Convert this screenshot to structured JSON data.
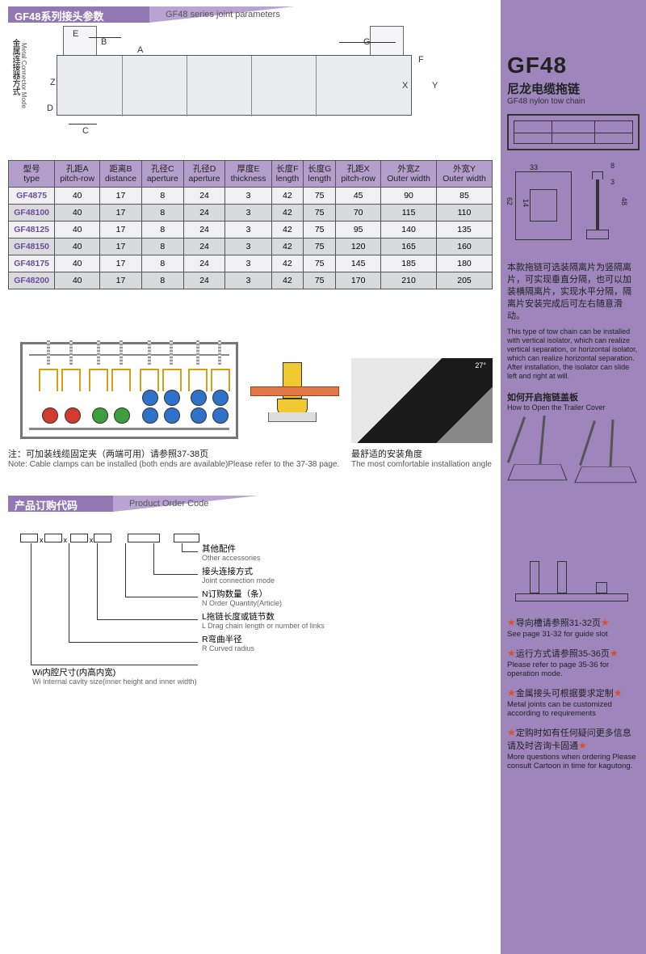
{
  "header1": {
    "cn": "GF48系列接头参数",
    "en": "GF48 series joint parameters"
  },
  "diagram_vertical": {
    "cn": "金属连接器方式",
    "en": "Metal Connector Mode"
  },
  "dim_labels": {
    "A": "A",
    "B": "B",
    "C": "C",
    "D": "D",
    "E": "E",
    "F": "F",
    "G": "G",
    "X": "X",
    "Y": "Y",
    "Z": "Z"
  },
  "table": {
    "headers": [
      {
        "cn": "型号",
        "en": "type"
      },
      {
        "cn": "孔距A",
        "en": "pitch-row"
      },
      {
        "cn": "距离B",
        "en": "distance"
      },
      {
        "cn": "孔径C",
        "en": "aperture"
      },
      {
        "cn": "孔径D",
        "en": "aperture"
      },
      {
        "cn": "厚度E",
        "en": "thickness"
      },
      {
        "cn": "长度F",
        "en": "length"
      },
      {
        "cn": "长度G",
        "en": "length"
      },
      {
        "cn": "孔距X",
        "en": "pitch-row"
      },
      {
        "cn": "外宽Z",
        "en": "Outer width"
      },
      {
        "cn": "外宽Y",
        "en": "Outer width"
      }
    ],
    "rows": [
      [
        "GF4875",
        "40",
        "17",
        "8",
        "24",
        "3",
        "42",
        "75",
        "45",
        "90",
        "85"
      ],
      [
        "GF48100",
        "40",
        "17",
        "8",
        "24",
        "3",
        "42",
        "75",
        "70",
        "115",
        "110"
      ],
      [
        "GF48125",
        "40",
        "17",
        "8",
        "24",
        "3",
        "42",
        "75",
        "95",
        "140",
        "135"
      ],
      [
        "GF48150",
        "40",
        "17",
        "8",
        "24",
        "3",
        "42",
        "75",
        "120",
        "165",
        "160"
      ],
      [
        "GF48175",
        "40",
        "17",
        "8",
        "24",
        "3",
        "42",
        "75",
        "145",
        "185",
        "180"
      ],
      [
        "GF48200",
        "40",
        "17",
        "8",
        "24",
        "3",
        "42",
        "75",
        "170",
        "210",
        "205"
      ]
    ]
  },
  "clamp_note": {
    "cn": "注：可加装线缆固定夹（两端可用）请参照37-38页",
    "en": "Note: Cable clamps can be installed (both ends are available)Please refer to the 37-38 page.",
    "angle_cn": "最舒适的安装角度",
    "angle_en": "The most comfortable installation angle",
    "angle_val": "27°"
  },
  "header2": {
    "cn": "产品订购代码",
    "en": "Product Order Code"
  },
  "order_tree": [
    {
      "cn": "其他配件",
      "en": "Other accessories"
    },
    {
      "cn": "接头连接方式",
      "en": "Joint connection mode"
    },
    {
      "cn": "N订购数量（条）",
      "en": "N Order Quantity(Article)"
    },
    {
      "cn": "L拖链长度或链节数",
      "en": "L Drag chain length or number of links"
    },
    {
      "cn": "R弯曲半径",
      "en": "R Curved radius"
    },
    {
      "cn": "Wi内腔尺寸(内高内宽)",
      "en": "Wi Internal cavity size(inner height and inner width)"
    }
  ],
  "sidebar": {
    "title": "GF48",
    "sub_cn": "尼龙电缆拖链",
    "sub_en": "GF48 nylon tow chain",
    "profile_dims": {
      "w": "33",
      "t": "8",
      "s": "3",
      "h1": "62",
      "h2": "14",
      "h": "48"
    },
    "desc_cn": "本款拖链可选装隔离片为竖隔离片，可实现垂直分隔，也可以加装横隔离片，实现水平分隔，隔离片安装完成后可左右随意滑动。",
    "desc_en": "This type of tow chain can be installed with vertical isolator, which can realize vertical separation, or horizontal isolator, which can realize horizontal separation. After installation, the isolator can slide left and right at will.",
    "open_cn": "如何开启拖链盖板",
    "open_en": "How to Open the Trailer Cover",
    "refs": [
      {
        "cn": "导向槽请参照31-32页",
        "en": "See page 31-32 for guide slot"
      },
      {
        "cn": "运行方式请参照35-36页",
        "en": "Please refer to page 35-36 for operation mode."
      },
      {
        "cn": "金属接头可根据要求定制",
        "en": "Metal joints can be customized according to requirements"
      },
      {
        "cn": "定购时如有任何疑问更多信息请及时咨询卡固通",
        "en": "More questions when ordering Please consult Cartoon in time for kagutong."
      }
    ]
  },
  "colors": {
    "purple": "#9e86bd",
    "purple_dark": "#9178b3",
    "red": "#d23a2e",
    "green": "#3c9e3c",
    "blue": "#2e72c9",
    "yellow": "#f0c830",
    "orange": "#e58a3c",
    "star": "#d4522a"
  }
}
